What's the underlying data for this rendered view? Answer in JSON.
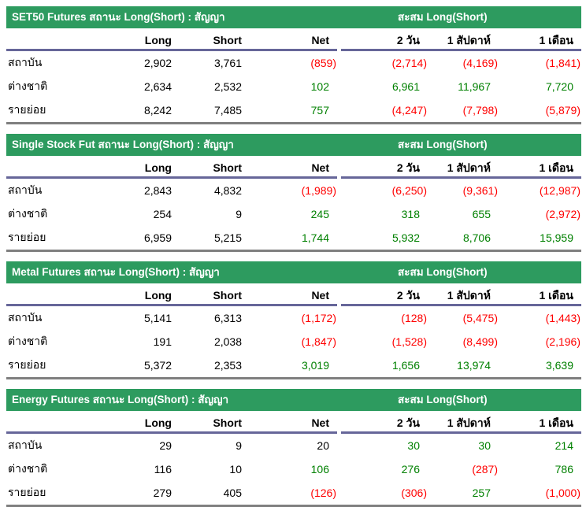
{
  "palette": {
    "header_bg": "#2d9b5f",
    "header_text": "#ffffff",
    "positive": "#008000",
    "negative": "#ff0000",
    "neutral": "#000000",
    "rule_purple": "#666699",
    "rule_gray": "#7f7f7f"
  },
  "cumulative_title": "สะสม Long(Short)",
  "columns": {
    "left": [
      "Long",
      "Short",
      "Net"
    ],
    "right": [
      "2 วัน",
      "1 สัปดาห์",
      "1 เดือน"
    ],
    "keys": [
      "long",
      "short",
      "net",
      "2day",
      "1week",
      "1month"
    ]
  },
  "tables": [
    {
      "id": "set50",
      "title": "SET50 Futures สถานะ Long(Short) : สัญญา",
      "rows": [
        {
          "label": "สถาบัน",
          "values": [
            "2,902",
            "3,761",
            "(859)",
            "(2,714)",
            "(4,169)",
            "(1,841)"
          ],
          "colors": [
            "neutral",
            "neutral",
            "negative",
            "negative",
            "negative",
            "negative"
          ]
        },
        {
          "label": "ต่างชาติ",
          "values": [
            "2,634",
            "2,532",
            "102",
            "6,961",
            "11,967",
            "7,720"
          ],
          "colors": [
            "neutral",
            "neutral",
            "positive",
            "positive",
            "positive",
            "positive"
          ]
        },
        {
          "label": "รายย่อย",
          "values": [
            "8,242",
            "7,485",
            "757",
            "(4,247)",
            "(7,798)",
            "(5,879)"
          ],
          "colors": [
            "neutral",
            "neutral",
            "positive",
            "negative",
            "negative",
            "negative"
          ]
        }
      ]
    },
    {
      "id": "single-stock",
      "title": "Single Stock Fut สถานะ Long(Short) : สัญญา",
      "rows": [
        {
          "label": "สถาบัน",
          "values": [
            "2,843",
            "4,832",
            "(1,989)",
            "(6,250)",
            "(9,361)",
            "(12,987)"
          ],
          "colors": [
            "neutral",
            "neutral",
            "negative",
            "negative",
            "negative",
            "negative"
          ]
        },
        {
          "label": "ต่างชาติ",
          "values": [
            "254",
            "9",
            "245",
            "318",
            "655",
            "(2,972)"
          ],
          "colors": [
            "neutral",
            "neutral",
            "positive",
            "positive",
            "positive",
            "negative"
          ]
        },
        {
          "label": "รายย่อย",
          "values": [
            "6,959",
            "5,215",
            "1,744",
            "5,932",
            "8,706",
            "15,959"
          ],
          "colors": [
            "neutral",
            "neutral",
            "positive",
            "positive",
            "positive",
            "positive"
          ]
        }
      ]
    },
    {
      "id": "metal",
      "title": "Metal Futures สถานะ Long(Short) : สัญญา",
      "rows": [
        {
          "label": "สถาบัน",
          "values": [
            "5,141",
            "6,313",
            "(1,172)",
            "(128)",
            "(5,475)",
            "(1,443)"
          ],
          "colors": [
            "neutral",
            "neutral",
            "negative",
            "negative",
            "negative",
            "negative"
          ]
        },
        {
          "label": "ต่างชาติ",
          "values": [
            "191",
            "2,038",
            "(1,847)",
            "(1,528)",
            "(8,499)",
            "(2,196)"
          ],
          "colors": [
            "neutral",
            "neutral",
            "negative",
            "negative",
            "negative",
            "negative"
          ]
        },
        {
          "label": "รายย่อย",
          "values": [
            "5,372",
            "2,353",
            "3,019",
            "1,656",
            "13,974",
            "3,639"
          ],
          "colors": [
            "neutral",
            "neutral",
            "positive",
            "positive",
            "positive",
            "positive"
          ]
        }
      ]
    },
    {
      "id": "energy",
      "title": "Energy Futures สถานะ Long(Short) : สัญญา",
      "rows": [
        {
          "label": "สถาบัน",
          "values": [
            "29",
            "9",
            "20",
            "30",
            "30",
            "214"
          ],
          "colors": [
            "neutral",
            "neutral",
            "neutral",
            "positive",
            "positive",
            "positive"
          ]
        },
        {
          "label": "ต่างชาติ",
          "values": [
            "116",
            "10",
            "106",
            "276",
            "(287)",
            "786"
          ],
          "colors": [
            "neutral",
            "neutral",
            "positive",
            "positive",
            "negative",
            "positive"
          ]
        },
        {
          "label": "รายย่อย",
          "values": [
            "279",
            "405",
            "(126)",
            "(306)",
            "257",
            "(1,000)"
          ],
          "colors": [
            "neutral",
            "neutral",
            "negative",
            "negative",
            "positive",
            "negative"
          ]
        }
      ]
    }
  ]
}
